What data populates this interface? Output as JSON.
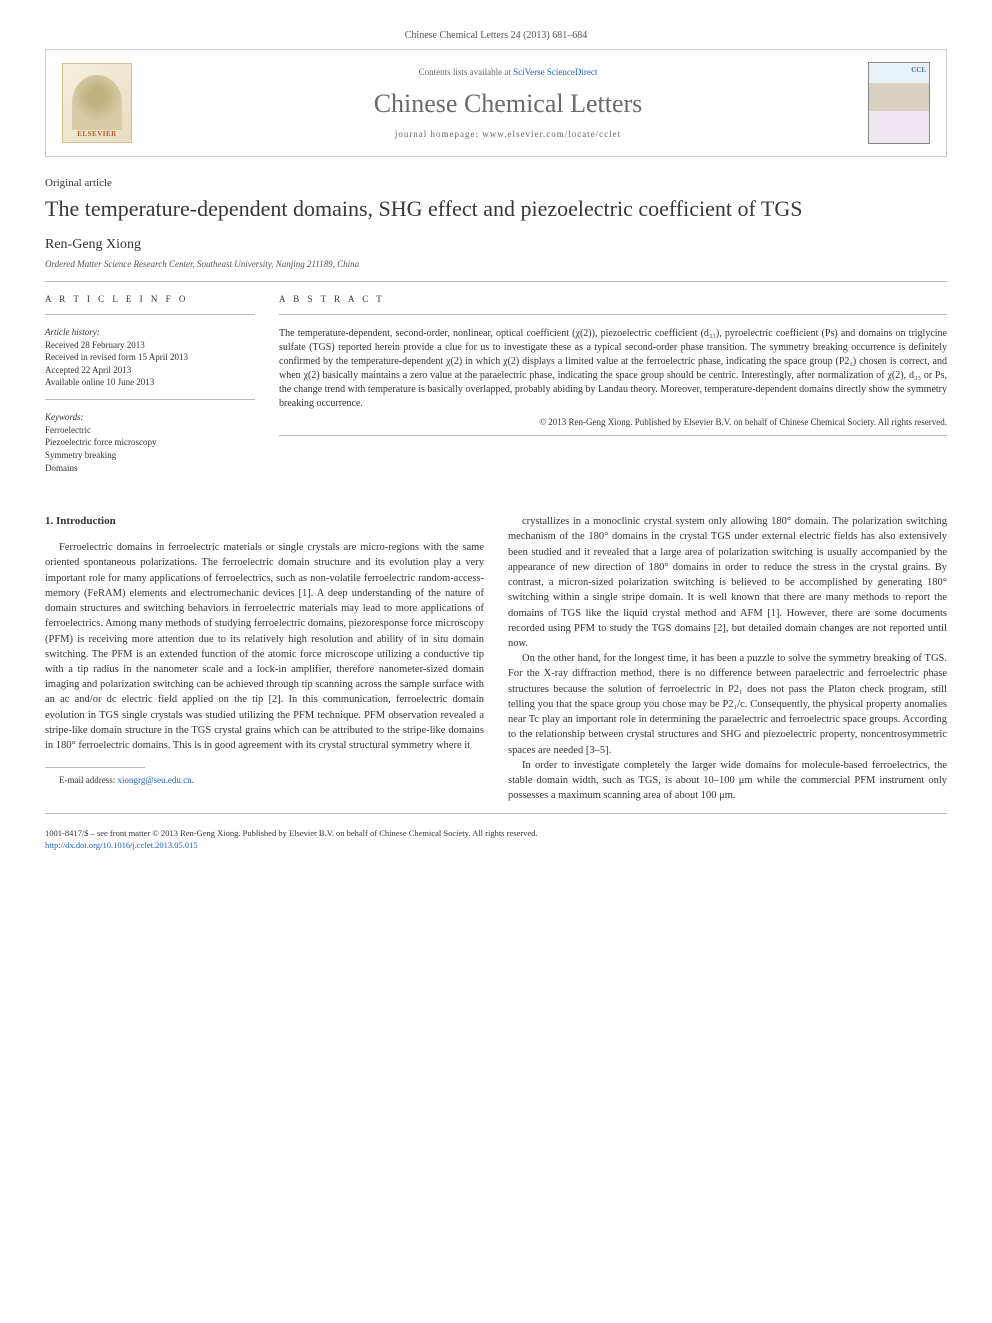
{
  "journal": {
    "header_citation": "Chinese Chemical Letters 24 (2013) 681–684",
    "contents_prefix": "Contents lists available at ",
    "contents_link": "SciVerse ScienceDirect",
    "name": "Chinese Chemical Letters",
    "homepage_prefix": "journal homepage: ",
    "homepage_url": "www.elsevier.com/locate/cclet",
    "publisher_logo": "ELSEVIER",
    "cover_label": "CCL"
  },
  "article": {
    "type": "Original article",
    "title": "The temperature-dependent domains, SHG effect and piezoelectric coefficient of TGS",
    "author": "Ren-Geng Xiong",
    "affiliation": "Ordered Matter Science Research Center, Southeast University, Nanjing 211189, China"
  },
  "article_info": {
    "heading": "A R T I C L E   I N F O",
    "history_label": "Article history:",
    "history": {
      "received": "Received 28 February 2013",
      "revised": "Received in revised form 15 April 2013",
      "accepted": "Accepted 22 April 2013",
      "online": "Available online 10 June 2013"
    },
    "keywords_label": "Keywords:",
    "keywords": {
      "k1": "Ferroelectric",
      "k2": "Piezoelectric force microscopy",
      "k3": "Symmetry breaking",
      "k4": "Domains"
    }
  },
  "abstract": {
    "heading": "A B S T R A C T",
    "text": "The temperature-dependent, second-order, nonlinear, optical coefficient (χ(2)), piezoelectric coefficient (d₃₃), pyroelectric coefficient (Ps) and domains on triglycine sulfate (TGS) reported herein provide a clue for us to investigate these as a typical second-order phase transition. The symmetry breaking occurrence is definitely confirmed by the temperature-dependent χ(2) in which χ(2) displays a limited value at the ferroelectric phase, indicating the space group (P2₁) chosen is correct, and when χ(2) basically maintains a zero value at the paraelectric phase, indicating the space group should be centric. Interestingly, after normalization of χ(2), d₃₃ or Ps, the change trend with temperature is basically overlapped, probably abiding by Landau theory. Moreover, temperature-dependent domains directly show the symmetry breaking occurrence.",
    "copyright": "© 2013 Ren-Geng Xiong. Published by Elsevier B.V. on behalf of Chinese Chemical Society. All rights reserved."
  },
  "body": {
    "section_1_heading": "1. Introduction",
    "col1_p1": "Ferroelectric domains in ferroelectric materials or single crystals are micro-regions with the same oriented spontaneous polarizations. The ferroelectric domain structure and its evolution play a very important role for many applications of ferroelectrics, such as non-volatile ferroelectric random-access-memory (FeRAM) elements and electromechanic devices [1]. A deep understanding of the nature of domain structures and switching behaviors in ferroelectric materials may lead to more applications of ferroelectrics. Among many methods of studying ferroelectric domains, piezoresponse force microscopy (PFM) is receiving more attention due to its relatively high resolution and ability of in situ domain switching. The PFM is an extended function of the atomic force microscope utilizing a conductive tip with a tip radius in the nanometer scale and a lock-in amplifier, therefore nanometer-sized domain imaging and polarization switching can be achieved through tip scanning across the sample surface with an ac and/or dc electric field applied on the tip [2]. In this communication, ferroelectric domain evolution in TGS single crystals was studied utilizing the PFM technique. PFM observation revealed a stripe-like domain structure in the TGS crystal grains which can be attributed to the stripe-like domains in 180° ferroelectric domains. This is in good agreement with its crystal structural symmetry where it",
    "col2_p1": "crystallizes in a monoclinic crystal system only allowing 180° domain. The polarization switching mechanism of the 180° domains in the crystal TGS under external electric fields has also extensively been studied and it revealed that a large area of polarization switching is usually accompanied by the appearance of new direction of 180° domains in order to reduce the stress in the crystal grains. By contrast, a micron-sized polarization switching is believed to be accomplished by generating 180° switching within a single stripe domain. It is well known that there are many methods to report the domains of TGS like the liquid crystal method and AFM [1]. However, there are some documents recorded using PFM to study the TGS domains [2], but detailed domain changes are not reported until now.",
    "col2_p2": "On the other hand, for the longest time, it has been a puzzle to solve the symmetry breaking of TGS. For the X-ray diffraction method, there is no difference between paraelectric and ferroelectric phase structures because the solution of ferroelectric in P2₁ does not pass the Platon check program, still telling you that the space group you chose may be P2₁/c. Consequently, the physical property anomalies near Tc play an important role in determining the paraelectric and ferroelectric space groups. According to the relationship between crystal structures and SHG and piezoelectric property, noncentrosymmetric spaces are needed [3–5].",
    "col2_p3": "In order to investigate completely the larger wide domains for molecule-based ferroelectrics, the stable domain width, such as TGS, is about 10–100 μm while the commercial PFM instrument only possesses a maximum scanning area of about 100 μm."
  },
  "footnote": {
    "email_label": "E-mail address: ",
    "email": "xiongrg@seu.edu.cn",
    "email_suffix": "."
  },
  "footer": {
    "line1": "1001-8417/$ – see front matter © 2013 Ren-Geng Xiong. Published by Elsevier B.V. on behalf of Chinese Chemical Society. All rights reserved.",
    "doi": "http://dx.doi.org/10.1016/j.cclet.2013.05.015"
  },
  "colors": {
    "link": "#2060c0",
    "text": "#333333",
    "heading_gray": "#6a6a6a",
    "border": "#bbbbbb"
  }
}
